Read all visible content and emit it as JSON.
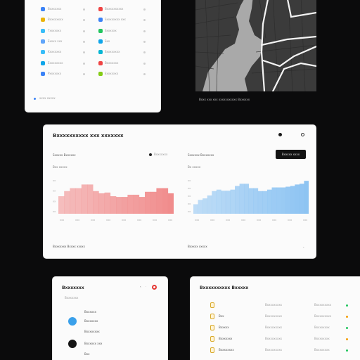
{
  "apps_card": {
    "rows": [
      {
        "left_label": "Bxxxxxxx",
        "left_color": "#3b82f6",
        "right_label": "Bxxxxxxxxxx",
        "right_color": "#ef4444"
      },
      {
        "left_label": "Bxxxxxxxx",
        "left_color": "#eab308",
        "right_label": "Sxxxxxxxx xxx",
        "right_color": "#3b82f6"
      },
      {
        "left_label": "Txxxxxxx",
        "left_color": "#38bdf8",
        "right_label": "Sxxxxxx",
        "right_color": "#22c55e"
      },
      {
        "left_label": "Exxxx  xxx",
        "left_color": "#60a5fa",
        "right_label": "Sxx",
        "right_color": "#0ea5e9"
      },
      {
        "left_label": "Kxxxxxxx",
        "left_color": "#38bdf8",
        "right_label": "Sxxxxxxxx",
        "right_color": "#06b6d4"
      },
      {
        "left_label": "Exxxxxxxx",
        "left_color": "#0ea5e9",
        "right_label": "Bxxxxxxx",
        "right_color": "#ef4444"
      },
      {
        "left_label": "Pxxxxxxx",
        "left_color": "#3b82f6",
        "right_label": "Exxxxxxx",
        "right_color": "#84cc16"
      }
    ],
    "footer": "xxxx  xxxxx"
  },
  "map": {
    "caption": "Bxxx xxx xxx xxxxxxxxxxx  Bxxxxxx"
  },
  "dashboard": {
    "title": "Bxxxxxxxxxx xxx xxxxxxx",
    "left_panel": {
      "title": "Sxxxxx  Bxxxxxx",
      "legend": "Bxxxxxxx",
      "sub": "Bxx  xxxxx",
      "y_ticks": [
        "xx",
        "xx",
        "xx",
        "xx"
      ],
      "x_ticks": [
        "xxx",
        "xxx",
        "xxx",
        "xxx",
        "xxx",
        "xxx",
        "xxx",
        "xxx"
      ]
    },
    "right_panel": {
      "title": "Sxxxxxx  Bxxxxxxx",
      "sub": "Bx  xxxxx",
      "button": "Bxxxxx xxxx",
      "y_ticks": [
        "xx",
        "xx",
        "xx",
        "xx",
        "xx"
      ],
      "x_ticks": [
        "xxx",
        "xxx",
        "xxx",
        "xxx",
        "xxx",
        "xxx",
        "xxx",
        "xxx"
      ]
    },
    "footer_left": "Bxxxxxxx  Bxxxx xxxxx",
    "footer_right": "Bxxxxx  xxxxx"
  },
  "contacts": {
    "title": "Bxxxxxxx",
    "subtitle": "Bxxxxxxx",
    "items": [
      "Bxxxxxx",
      "Bxxxxxxx",
      "Bxxxxxxxx",
      "Bxxxxxx xxx",
      "Bxx"
    ]
  },
  "table": {
    "title": "Bxxxxxxxxxx Bxxxxx",
    "rows": [
      {
        "a": "",
        "b": "Bxxxxxxxxx",
        "c": "Bxxxxxxxxx"
      },
      {
        "a": "Bxx",
        "b": "Bxxxxxxxxx",
        "c": "Bxxxxxxxxx"
      },
      {
        "a": "Bxxxxx",
        "b": "Bxxxxxxxxx",
        "c": "Bxxxxxxxx"
      },
      {
        "a": "Bxxxxxxx",
        "b": "Bxxxxxxxxx",
        "c": "Bxxxxxxxx"
      },
      {
        "a": "Bxxxxxxxx",
        "b": "Bxxxxxxxxx",
        "c": "Bxxxxxxxx"
      }
    ]
  },
  "chart_data": [
    {
      "type": "bar",
      "color": "#f08a8a",
      "categories": [
        "1",
        "2",
        "3",
        "4",
        "5",
        "6",
        "7",
        "8",
        "9",
        "10",
        "11",
        "12",
        "13",
        "14",
        "15",
        "16",
        "17",
        "18",
        "19",
        "20"
      ],
      "values": [
        48,
        62,
        70,
        70,
        80,
        80,
        62,
        56,
        58,
        48,
        46,
        46,
        52,
        52,
        46,
        60,
        60,
        70,
        70,
        56
      ],
      "ylim": [
        0,
        100
      ]
    },
    {
      "type": "bar",
      "color": "#8cc3f2",
      "categories": [
        "1",
        "2",
        "3",
        "4",
        "5",
        "6",
        "7",
        "8",
        "9",
        "10",
        "11",
        "12",
        "13",
        "14",
        "15",
        "16",
        "17",
        "18",
        "19",
        "20",
        "21",
        "22",
        "23",
        "24",
        "25"
      ],
      "values": [
        26,
        38,
        42,
        50,
        62,
        66,
        63,
        63,
        66,
        76,
        82,
        82,
        70,
        70,
        62,
        62,
        66,
        72,
        72,
        72,
        74,
        76,
        80,
        82,
        90
      ],
      "ylim": [
        0,
        100
      ]
    }
  ]
}
